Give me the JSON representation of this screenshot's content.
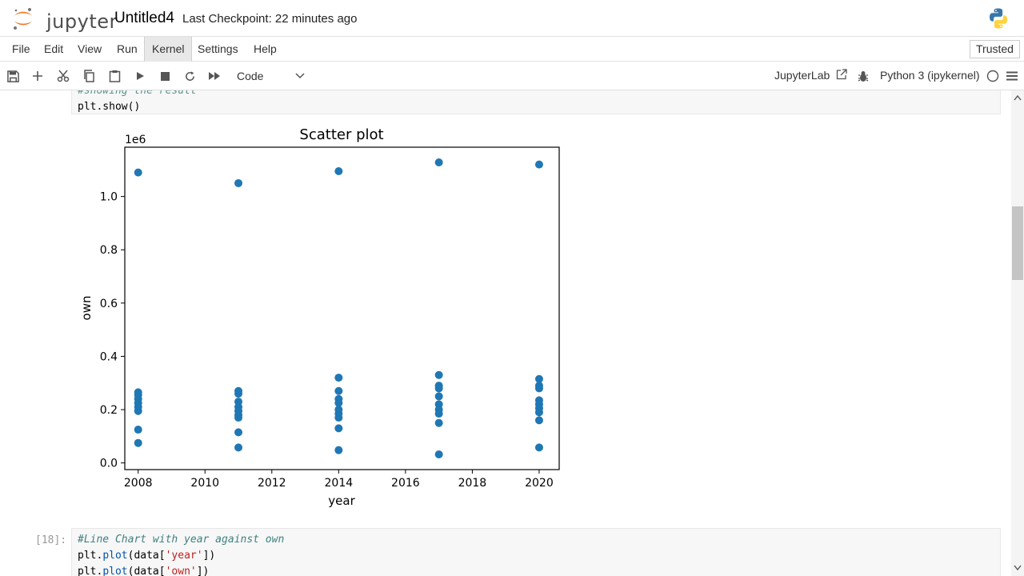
{
  "header": {
    "logo_text": "jupyter",
    "notebook_name": "Untitled4",
    "checkpoint": "Last Checkpoint: 22 minutes ago"
  },
  "menu": {
    "items": [
      "File",
      "Edit",
      "View",
      "Run",
      "Kernel",
      "Settings",
      "Help"
    ],
    "active": "Kernel",
    "trusted": "Trusted"
  },
  "toolbar": {
    "cell_type": "Code",
    "jupyterlab": "JupyterLab",
    "kernel": "Python 3 (ipykernel)",
    "icons": [
      "save-icon",
      "add-icon",
      "cut-icon",
      "copy-icon",
      "paste-icon",
      "run-icon",
      "stop-icon",
      "restart-icon",
      "fast-forward-icon"
    ]
  },
  "cells": {
    "prev_code_line_partial": "#showing the result",
    "prev_code_line": "plt.show()",
    "next_prompt": "[18]:",
    "next_code": [
      "#Line Chart with year against own",
      "plt.plot(data['year'])",
      "plt.plot(data['own'])"
    ]
  },
  "chart_data": {
    "type": "scatter",
    "title": "Scatter plot",
    "xlabel": "year",
    "ylabel": "own",
    "offset_text": "1e6",
    "xlim": [
      2007.6,
      2020.6
    ],
    "ylim": [
      -0.025,
      1.185
    ],
    "xticks": [
      2008,
      2010,
      2012,
      2014,
      2016,
      2018,
      2020
    ],
    "yticks": [
      0.0,
      0.2,
      0.4,
      0.6,
      0.8,
      1.0
    ],
    "ytick_labels": [
      "0.0",
      "0.2",
      "0.4",
      "0.6",
      "0.8",
      "1.0"
    ],
    "color": "#1f77b4",
    "points": [
      [
        2008,
        1.09
      ],
      [
        2008,
        0.265
      ],
      [
        2008,
        0.255
      ],
      [
        2008,
        0.24
      ],
      [
        2008,
        0.225
      ],
      [
        2008,
        0.21
      ],
      [
        2008,
        0.195
      ],
      [
        2008,
        0.125
      ],
      [
        2008,
        0.075
      ],
      [
        2011,
        1.05
      ],
      [
        2011,
        0.27
      ],
      [
        2011,
        0.26
      ],
      [
        2011,
        0.23
      ],
      [
        2011,
        0.21
      ],
      [
        2011,
        0.195
      ],
      [
        2011,
        0.18
      ],
      [
        2011,
        0.17
      ],
      [
        2011,
        0.115
      ],
      [
        2011,
        0.058
      ],
      [
        2014,
        1.095
      ],
      [
        2014,
        0.32
      ],
      [
        2014,
        0.27
      ],
      [
        2014,
        0.24
      ],
      [
        2014,
        0.225
      ],
      [
        2014,
        0.2
      ],
      [
        2014,
        0.185
      ],
      [
        2014,
        0.17
      ],
      [
        2014,
        0.13
      ],
      [
        2014,
        0.048
      ],
      [
        2017,
        1.128
      ],
      [
        2017,
        0.33
      ],
      [
        2017,
        0.29
      ],
      [
        2017,
        0.28
      ],
      [
        2017,
        0.25
      ],
      [
        2017,
        0.22
      ],
      [
        2017,
        0.2
      ],
      [
        2017,
        0.185
      ],
      [
        2017,
        0.15
      ],
      [
        2017,
        0.032
      ],
      [
        2020,
        1.12
      ],
      [
        2020,
        0.315
      ],
      [
        2020,
        0.29
      ],
      [
        2020,
        0.28
      ],
      [
        2020,
        0.235
      ],
      [
        2020,
        0.22
      ],
      [
        2020,
        0.205
      ],
      [
        2020,
        0.19
      ],
      [
        2020,
        0.16
      ],
      [
        2020,
        0.058
      ]
    ]
  }
}
